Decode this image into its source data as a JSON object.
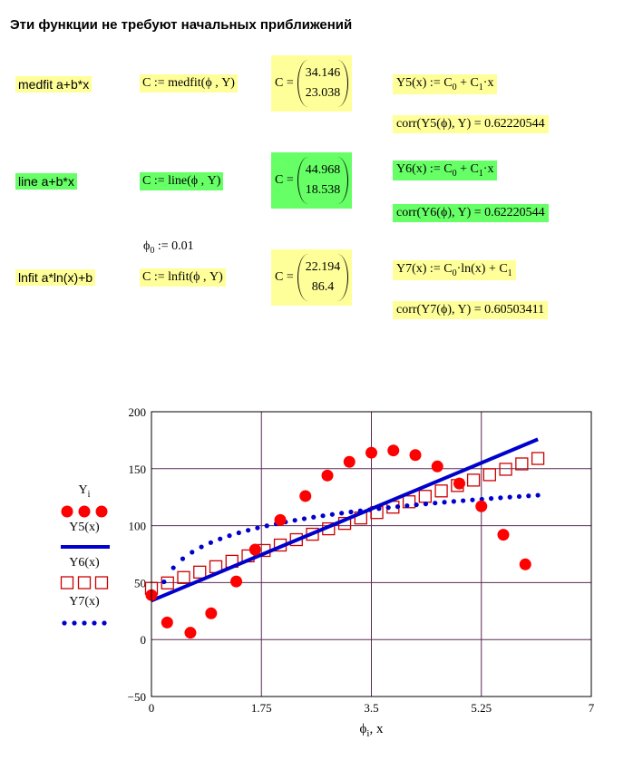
{
  "heading": "Эти функции не требуют начальных приближений",
  "rows": [
    {
      "label": "medfit  a+b*x",
      "call": "C := medfit(ϕ , Y)",
      "c_lhs": "C =",
      "c_values": [
        "34.146",
        "23.038"
      ],
      "model": "Y5(x) := C",
      "model_rest": "+ C",
      "model_tail": "·x",
      "corr": "corr(Y5(ϕ), Y) = 0.62220544",
      "color": "#ffff99"
    },
    {
      "label": "line   a+b*x",
      "call": "C := line(ϕ , Y)",
      "c_lhs": "C =",
      "c_values": [
        "44.968",
        "18.538"
      ],
      "model": "Y6(x) := C",
      "model_rest": "+ C",
      "model_tail": "·x",
      "corr": "corr(Y6(ϕ), Y) = 0.62220544",
      "color": "#66ff66"
    },
    {
      "label": "lnfit  a*ln(x)+b",
      "call": "C := lnfit(ϕ , Y)",
      "c_lhs": "C =",
      "c_values": [
        "22.194",
        "86.4"
      ],
      "model": "Y7(x) := C",
      "model_rest": "·ln(x) + C",
      "model_tail": "",
      "corr": "corr(Y7(ϕ), Y) = 0.60503411",
      "color": "#ffff99"
    }
  ],
  "phi0": "ϕ",
  "phi0_rest": ":= 0.01",
  "sub0": "0",
  "sub1": "1",
  "chart_data": {
    "type": "scatter",
    "xlim": [
      0,
      7
    ],
    "ylim": [
      -50,
      200
    ],
    "x_ticks": [
      "0",
      "1.75",
      "3.5",
      "5.25",
      "7"
    ],
    "y_ticks": [
      "200",
      "150",
      "100",
      "50",
      "0",
      "−50"
    ],
    "xlabel": "ϕ",
    "xlabel_sub": "i",
    "xlabel_rest": ", x",
    "grid": true,
    "legend_position": "left",
    "series": [
      {
        "name": "Y",
        "name_sub": "i",
        "marker": "filled-circle",
        "color": "#ff0000",
        "points": [
          [
            0,
            39
          ],
          [
            0.25,
            15
          ],
          [
            0.62,
            6
          ],
          [
            0.95,
            23
          ],
          [
            1.35,
            51
          ],
          [
            1.65,
            79
          ],
          [
            2.05,
            105
          ],
          [
            2.45,
            126
          ],
          [
            2.8,
            144
          ],
          [
            3.15,
            156
          ],
          [
            3.5,
            164
          ],
          [
            3.85,
            166
          ],
          [
            4.2,
            162
          ],
          [
            4.55,
            152
          ],
          [
            4.9,
            137
          ],
          [
            5.25,
            117
          ],
          [
            5.6,
            92
          ],
          [
            5.95,
            66
          ]
        ]
      },
      {
        "name": "Y5(x)",
        "marker": "solid-line",
        "color": "#0000cc",
        "intercept": 34.146,
        "slope": 23.038
      },
      {
        "name": "Y6(x)",
        "marker": "open-square",
        "color": "#cc0000",
        "intercept": 44.968,
        "slope": 18.538
      },
      {
        "name": "Y7(x)",
        "marker": "dotted",
        "color": "#0000cc",
        "a": 22.194,
        "b": 86.4
      }
    ]
  }
}
